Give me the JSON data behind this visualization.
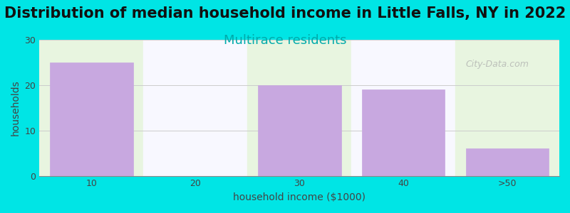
{
  "title": "Distribution of median household income in Little Falls, NY in 2022",
  "subtitle": "Multirace residents",
  "xlabel": "household income ($1000)",
  "ylabel": "households",
  "categories": [
    "10",
    "20",
    "30",
    "40",
    ">50"
  ],
  "values": [
    25,
    0,
    20,
    19,
    6
  ],
  "bar_color": "#c8a8e0",
  "bar_edge_color": "#c8a8e0",
  "background_color": "#00e5e5",
  "plot_bg_color": "#ffffff",
  "band_color_odd": "#e8f5e0",
  "band_color_even": "#f8f8ff",
  "ylim": [
    0,
    30
  ],
  "yticks": [
    0,
    10,
    20,
    30
  ],
  "title_fontsize": 15,
  "subtitle_fontsize": 13,
  "subtitle_color": "#00aaaa",
  "axis_label_fontsize": 10,
  "tick_fontsize": 9,
  "watermark": "City-Data.com",
  "figsize": [
    8.0,
    3.0
  ],
  "dpi": 100
}
